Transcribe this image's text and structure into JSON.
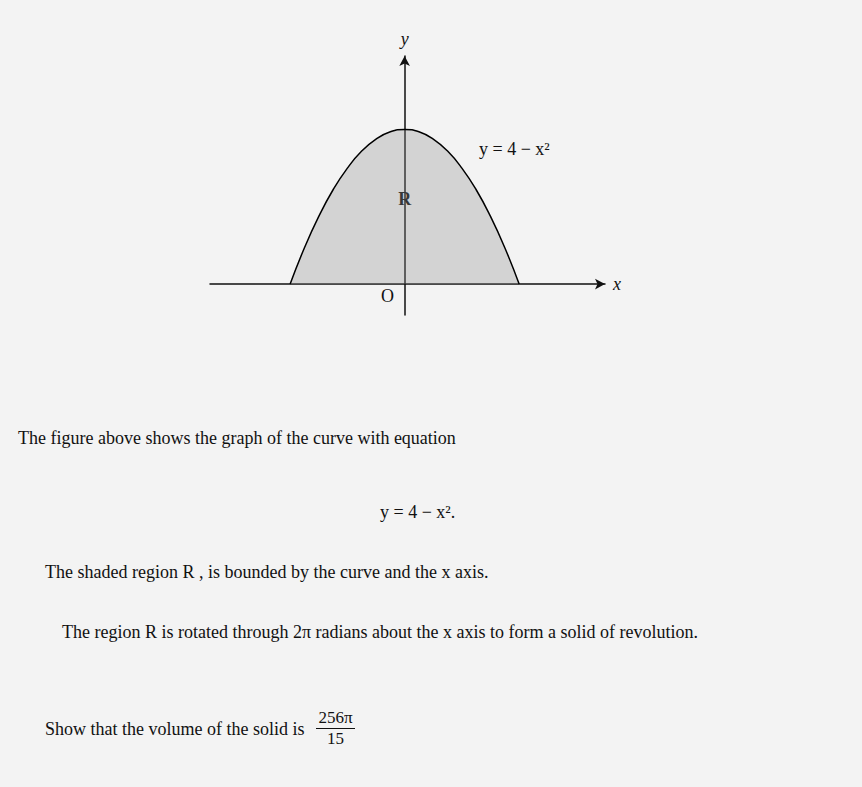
{
  "chart_data": {
    "type": "line",
    "x": [
      -2,
      -1.75,
      -1.5,
      -1.25,
      -1,
      -0.75,
      -0.5,
      -0.25,
      0,
      0.25,
      0.5,
      0.75,
      1,
      1.25,
      1.5,
      1.75,
      2
    ],
    "values": [
      0,
      0.94,
      1.75,
      2.44,
      3,
      3.44,
      3.75,
      3.94,
      4,
      3.94,
      3.75,
      3.44,
      3,
      2.44,
      1.75,
      0.94,
      0
    ],
    "color": "#000000",
    "xlim": [
      -3.4,
      3.5
    ],
    "ylim": [
      -0.8,
      5.9
    ],
    "x_label": "x",
    "y_label": "y",
    "curve_label": "y = 4 − x²",
    "region_label": "R",
    "origin_label": "O",
    "grid": false,
    "tick_labels": false
  },
  "document": {
    "paragraphs": [
      "The figure above shows the graph of the curve with equation",
      "y = 4 − x².",
      "The shaded region R , is bounded by the curve and the x axis.",
      "The region R is rotated through 2π radians about the x axis to form a solid of revolution."
    ],
    "question": "Show that the volume of the solid is",
    "volume": {
      "numerator": "256π",
      "denominator": "15"
    }
  }
}
